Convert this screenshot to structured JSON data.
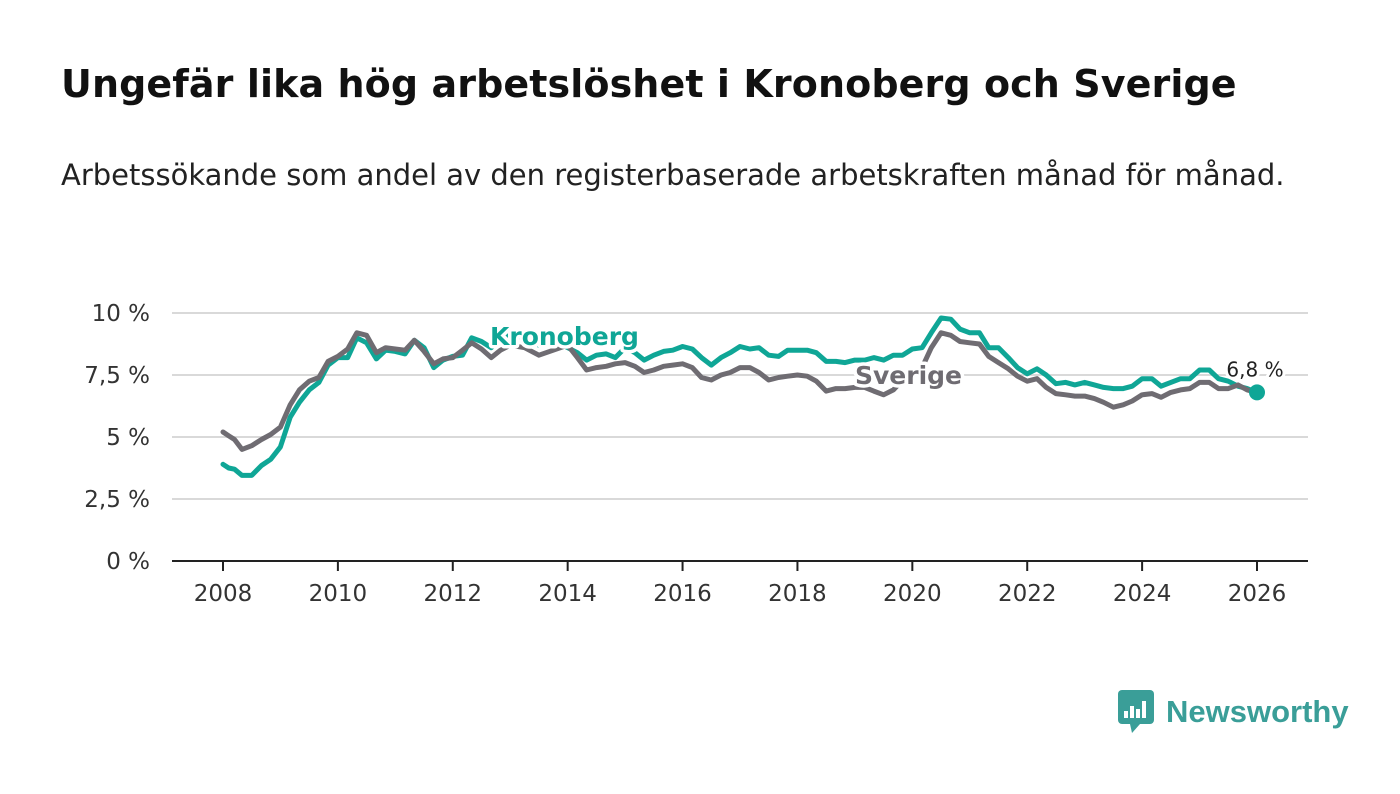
{
  "title": "Ungefär lika hög arbetslöshet i Kronoberg och Sverige",
  "subtitle": "Arbetssökande som andel av den registerbaserade arbetskraften månad för månad.",
  "brand": {
    "name": "Newsworthy",
    "icon": "newsworthy-logo-icon"
  },
  "colors": {
    "kronoberg": "#0fa696",
    "sverige": "#6f6c72",
    "grid": "#d9d9d9",
    "axis": "#222222"
  },
  "chart_data": {
    "type": "line",
    "title": "Ungefär lika hög arbetslöshet i Kronoberg och Sverige",
    "xlabel": "",
    "ylabel": "",
    "xlim": [
      2008,
      2026
    ],
    "ylim": [
      0,
      10
    ],
    "grid": true,
    "y_ticks": [
      0,
      2.5,
      5,
      7.5,
      10
    ],
    "y_tick_labels": [
      "0 %",
      "2,5 %",
      "5 %",
      "7,5 %",
      "10 %"
    ],
    "x_ticks": [
      2008,
      2010,
      2012,
      2014,
      2016,
      2018,
      2020,
      2022,
      2024,
      2026
    ],
    "x_tick_labels": [
      "2008",
      "2010",
      "2012",
      "2014",
      "2016",
      "2018",
      "2020",
      "2022",
      "2024",
      "2026"
    ],
    "end_label": "6,8 %",
    "series": [
      {
        "name": "Kronoberg",
        "label": "Kronoberg",
        "points": [
          [
            2008.0,
            3.9
          ],
          [
            2008.1,
            3.75
          ],
          [
            2008.2,
            3.7
          ],
          [
            2008.33,
            3.45
          ],
          [
            2008.5,
            3.45
          ],
          [
            2008.67,
            3.85
          ],
          [
            2008.83,
            4.1
          ],
          [
            2009.0,
            4.6
          ],
          [
            2009.17,
            5.8
          ],
          [
            2009.33,
            6.4
          ],
          [
            2009.5,
            6.9
          ],
          [
            2009.67,
            7.2
          ],
          [
            2009.83,
            7.9
          ],
          [
            2010.0,
            8.2
          ],
          [
            2010.17,
            8.2
          ],
          [
            2010.33,
            9.0
          ],
          [
            2010.5,
            8.8
          ],
          [
            2010.67,
            8.15
          ],
          [
            2010.83,
            8.5
          ],
          [
            2011.0,
            8.45
          ],
          [
            2011.17,
            8.35
          ],
          [
            2011.33,
            8.9
          ],
          [
            2011.5,
            8.6
          ],
          [
            2011.67,
            7.8
          ],
          [
            2011.83,
            8.1
          ],
          [
            2012.0,
            8.25
          ],
          [
            2012.17,
            8.3
          ],
          [
            2012.33,
            9.0
          ],
          [
            2012.5,
            8.85
          ],
          [
            2012.67,
            8.6
          ],
          [
            2012.83,
            9.0
          ],
          [
            2013.0,
            9.1
          ],
          [
            2013.25,
            9.0
          ],
          [
            2013.5,
            8.7
          ],
          [
            2013.75,
            8.9
          ],
          [
            2014.0,
            8.6
          ],
          [
            2014.17,
            8.4
          ],
          [
            2014.33,
            8.1
          ],
          [
            2014.5,
            8.3
          ],
          [
            2014.67,
            8.35
          ],
          [
            2014.83,
            8.2
          ],
          [
            2015.0,
            8.6
          ],
          [
            2015.17,
            8.4
          ],
          [
            2015.33,
            8.1
          ],
          [
            2015.5,
            8.3
          ],
          [
            2015.67,
            8.45
          ],
          [
            2015.83,
            8.5
          ],
          [
            2016.0,
            8.65
          ],
          [
            2016.17,
            8.55
          ],
          [
            2016.33,
            8.2
          ],
          [
            2016.5,
            7.9
          ],
          [
            2016.67,
            8.2
          ],
          [
            2016.83,
            8.4
          ],
          [
            2017.0,
            8.65
          ],
          [
            2017.17,
            8.55
          ],
          [
            2017.33,
            8.6
          ],
          [
            2017.5,
            8.3
          ],
          [
            2017.67,
            8.25
          ],
          [
            2017.83,
            8.5
          ],
          [
            2018.0,
            8.5
          ],
          [
            2018.17,
            8.5
          ],
          [
            2018.33,
            8.4
          ],
          [
            2018.5,
            8.05
          ],
          [
            2018.67,
            8.05
          ],
          [
            2018.83,
            8.0
          ],
          [
            2019.0,
            8.1
          ],
          [
            2019.17,
            8.1
          ],
          [
            2019.33,
            8.2
          ],
          [
            2019.5,
            8.1
          ],
          [
            2019.67,
            8.3
          ],
          [
            2019.83,
            8.3
          ],
          [
            2020.0,
            8.55
          ],
          [
            2020.17,
            8.6
          ],
          [
            2020.33,
            9.2
          ],
          [
            2020.5,
            9.8
          ],
          [
            2020.67,
            9.75
          ],
          [
            2020.83,
            9.35
          ],
          [
            2021.0,
            9.2
          ],
          [
            2021.17,
            9.2
          ],
          [
            2021.33,
            8.6
          ],
          [
            2021.5,
            8.6
          ],
          [
            2021.67,
            8.2
          ],
          [
            2021.83,
            7.8
          ],
          [
            2022.0,
            7.55
          ],
          [
            2022.17,
            7.75
          ],
          [
            2022.33,
            7.5
          ],
          [
            2022.5,
            7.15
          ],
          [
            2022.67,
            7.2
          ],
          [
            2022.83,
            7.1
          ],
          [
            2023.0,
            7.2
          ],
          [
            2023.17,
            7.1
          ],
          [
            2023.33,
            7.0
          ],
          [
            2023.5,
            6.95
          ],
          [
            2023.67,
            6.95
          ],
          [
            2023.83,
            7.05
          ],
          [
            2024.0,
            7.35
          ],
          [
            2024.17,
            7.35
          ],
          [
            2024.33,
            7.05
          ],
          [
            2024.5,
            7.2
          ],
          [
            2024.67,
            7.35
          ],
          [
            2024.83,
            7.35
          ],
          [
            2025.0,
            7.7
          ],
          [
            2025.17,
            7.7
          ],
          [
            2025.33,
            7.35
          ],
          [
            2025.5,
            7.25
          ],
          [
            2025.67,
            7.05
          ],
          [
            2025.83,
            6.95
          ],
          [
            2026.0,
            6.8
          ]
        ]
      },
      {
        "name": "Sverige",
        "label": "Sverige",
        "points": [
          [
            2008.0,
            5.2
          ],
          [
            2008.1,
            5.05
          ],
          [
            2008.2,
            4.9
          ],
          [
            2008.33,
            4.5
          ],
          [
            2008.5,
            4.65
          ],
          [
            2008.67,
            4.9
          ],
          [
            2008.83,
            5.1
          ],
          [
            2009.0,
            5.4
          ],
          [
            2009.17,
            6.3
          ],
          [
            2009.33,
            6.9
          ],
          [
            2009.5,
            7.25
          ],
          [
            2009.67,
            7.4
          ],
          [
            2009.83,
            8.05
          ],
          [
            2010.0,
            8.25
          ],
          [
            2010.17,
            8.55
          ],
          [
            2010.33,
            9.2
          ],
          [
            2010.5,
            9.1
          ],
          [
            2010.67,
            8.4
          ],
          [
            2010.83,
            8.6
          ],
          [
            2011.0,
            8.55
          ],
          [
            2011.17,
            8.5
          ],
          [
            2011.33,
            8.9
          ],
          [
            2011.5,
            8.45
          ],
          [
            2011.67,
            7.95
          ],
          [
            2011.83,
            8.15
          ],
          [
            2012.0,
            8.2
          ],
          [
            2012.17,
            8.5
          ],
          [
            2012.33,
            8.8
          ],
          [
            2012.5,
            8.55
          ],
          [
            2012.67,
            8.2
          ],
          [
            2012.83,
            8.5
          ],
          [
            2013.0,
            8.7
          ],
          [
            2013.25,
            8.6
          ],
          [
            2013.5,
            8.3
          ],
          [
            2013.75,
            8.5
          ],
          [
            2014.0,
            8.7
          ],
          [
            2014.17,
            8.2
          ],
          [
            2014.33,
            7.7
          ],
          [
            2014.5,
            7.8
          ],
          [
            2014.67,
            7.85
          ],
          [
            2014.83,
            7.95
          ],
          [
            2015.0,
            8.0
          ],
          [
            2015.17,
            7.85
          ],
          [
            2015.33,
            7.6
          ],
          [
            2015.5,
            7.7
          ],
          [
            2015.67,
            7.85
          ],
          [
            2015.83,
            7.9
          ],
          [
            2016.0,
            7.95
          ],
          [
            2016.17,
            7.8
          ],
          [
            2016.33,
            7.4
          ],
          [
            2016.5,
            7.3
          ],
          [
            2016.67,
            7.5
          ],
          [
            2016.83,
            7.6
          ],
          [
            2017.0,
            7.8
          ],
          [
            2017.17,
            7.8
          ],
          [
            2017.33,
            7.6
          ],
          [
            2017.5,
            7.3
          ],
          [
            2017.67,
            7.4
          ],
          [
            2017.83,
            7.45
          ],
          [
            2018.0,
            7.5
          ],
          [
            2018.17,
            7.45
          ],
          [
            2018.33,
            7.25
          ],
          [
            2018.5,
            6.85
          ],
          [
            2018.67,
            6.95
          ],
          [
            2018.83,
            6.95
          ],
          [
            2019.0,
            7.0
          ],
          [
            2019.17,
            7.0
          ],
          [
            2019.33,
            6.85
          ],
          [
            2019.5,
            6.7
          ],
          [
            2019.67,
            6.9
          ],
          [
            2019.83,
            7.3
          ],
          [
            2020.0,
            7.5
          ],
          [
            2020.17,
            7.8
          ],
          [
            2020.33,
            8.6
          ],
          [
            2020.5,
            9.2
          ],
          [
            2020.67,
            9.1
          ],
          [
            2020.83,
            8.85
          ],
          [
            2021.0,
            8.8
          ],
          [
            2021.17,
            8.75
          ],
          [
            2021.33,
            8.25
          ],
          [
            2021.5,
            8.0
          ],
          [
            2021.67,
            7.75
          ],
          [
            2021.83,
            7.45
          ],
          [
            2022.0,
            7.25
          ],
          [
            2022.17,
            7.35
          ],
          [
            2022.33,
            7.0
          ],
          [
            2022.5,
            6.75
          ],
          [
            2022.67,
            6.7
          ],
          [
            2022.83,
            6.65
          ],
          [
            2023.0,
            6.65
          ],
          [
            2023.17,
            6.55
          ],
          [
            2023.33,
            6.4
          ],
          [
            2023.5,
            6.2
          ],
          [
            2023.67,
            6.3
          ],
          [
            2023.83,
            6.45
          ],
          [
            2024.0,
            6.7
          ],
          [
            2024.17,
            6.75
          ],
          [
            2024.33,
            6.6
          ],
          [
            2024.5,
            6.8
          ],
          [
            2024.67,
            6.9
          ],
          [
            2024.83,
            6.95
          ],
          [
            2025.0,
            7.2
          ],
          [
            2025.17,
            7.2
          ],
          [
            2025.33,
            6.95
          ],
          [
            2025.5,
            6.95
          ],
          [
            2025.67,
            7.1
          ],
          [
            2025.83,
            6.9
          ],
          [
            2026.0,
            6.8
          ]
        ]
      }
    ]
  }
}
